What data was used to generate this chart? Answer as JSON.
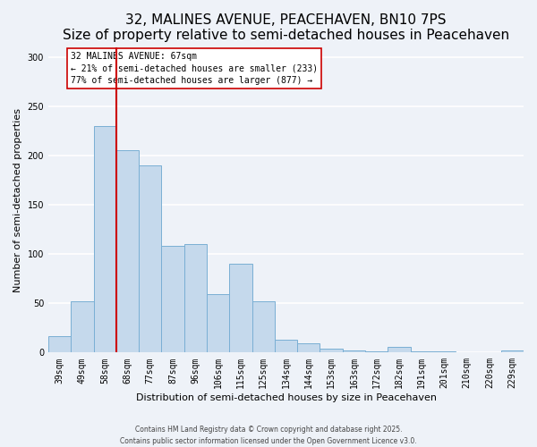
{
  "title": "32, MALINES AVENUE, PEACEHAVEN, BN10 7PS",
  "subtitle": "Size of property relative to semi-detached houses in Peacehaven",
  "xlabel": "Distribution of semi-detached houses by size in Peacehaven",
  "ylabel": "Number of semi-detached properties",
  "categories": [
    "39sqm",
    "49sqm",
    "58sqm",
    "68sqm",
    "77sqm",
    "87sqm",
    "96sqm",
    "106sqm",
    "115sqm",
    "125sqm",
    "134sqm",
    "144sqm",
    "153sqm",
    "163sqm",
    "172sqm",
    "182sqm",
    "191sqm",
    "201sqm",
    "210sqm",
    "220sqm",
    "229sqm"
  ],
  "values": [
    17,
    52,
    230,
    205,
    190,
    108,
    110,
    59,
    90,
    52,
    13,
    9,
    4,
    2,
    1,
    6,
    1,
    1,
    0,
    0,
    2
  ],
  "bar_color": "#c5d9ec",
  "bar_edge_color": "#7aafd4",
  "property_line_color": "#cc0000",
  "annotation_title": "32 MALINES AVENUE: 67sqm",
  "annotation_line1": "← 21% of semi-detached houses are smaller (233)",
  "annotation_line2": "77% of semi-detached houses are larger (877) →",
  "annotation_box_color": "#ffffff",
  "annotation_box_edge": "#cc0000",
  "ylim": [
    0,
    310
  ],
  "yticks": [
    0,
    50,
    100,
    150,
    200,
    250,
    300
  ],
  "footer1": "Contains HM Land Registry data © Crown copyright and database right 2025.",
  "footer2": "Contains public sector information licensed under the Open Government Licence v3.0.",
  "bg_color": "#eef2f8",
  "grid_color": "#ffffff",
  "title_fontsize": 11,
  "subtitle_fontsize": 9,
  "axis_label_fontsize": 8,
  "tick_fontsize": 7,
  "annotation_fontsize": 7,
  "footer_fontsize": 5.5
}
